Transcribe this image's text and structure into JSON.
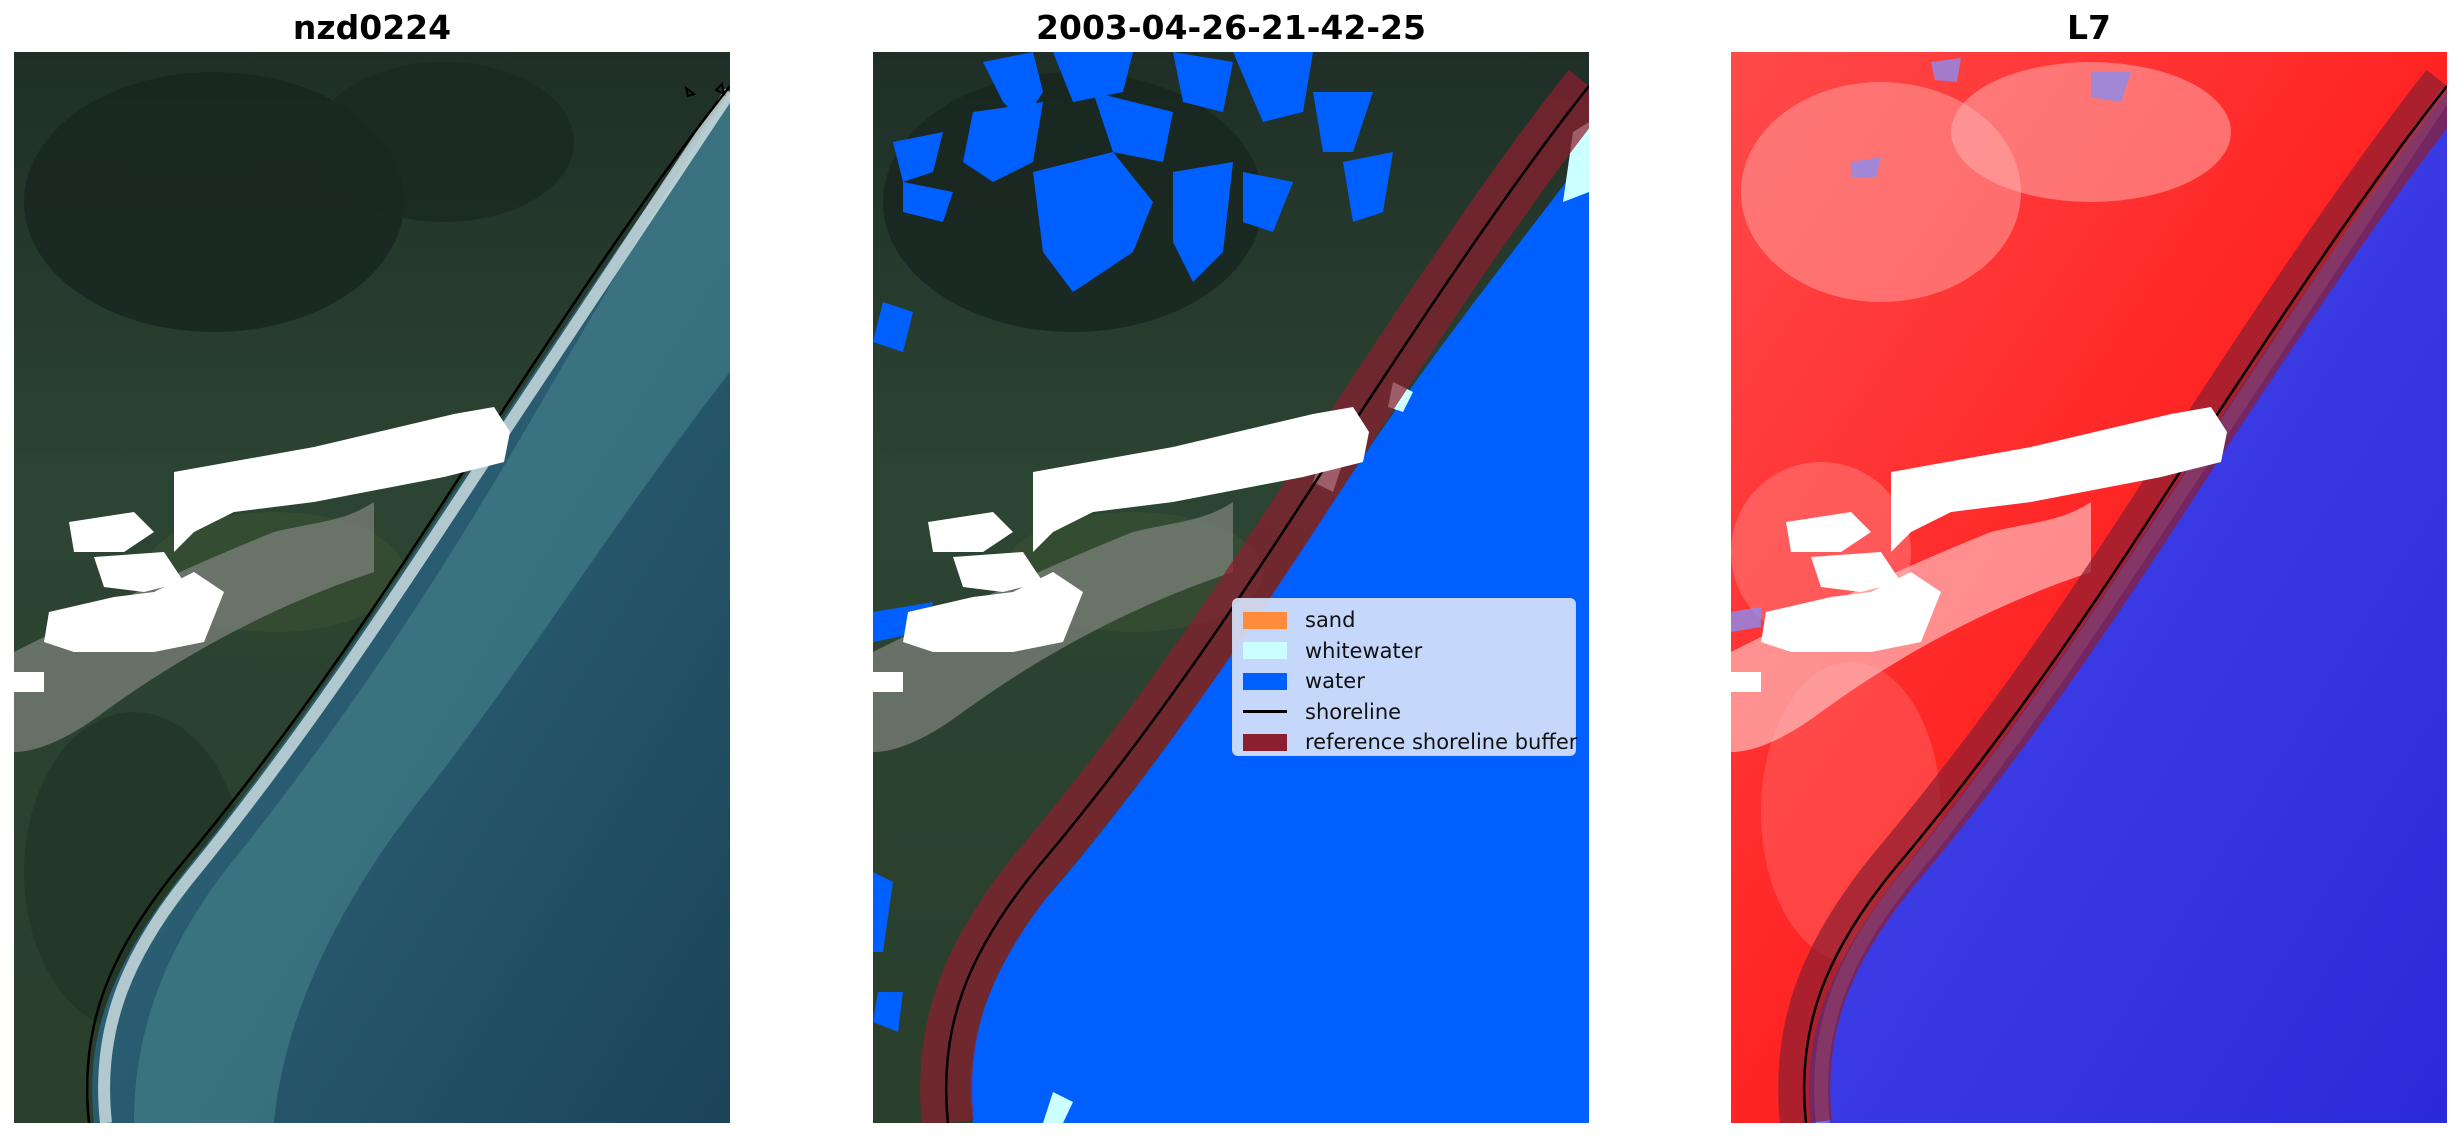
{
  "panels": [
    {
      "title": "nzd0224",
      "kind": "rgb-composite"
    },
    {
      "title": "2003-04-26-21-42-25",
      "kind": "classified"
    },
    {
      "title": "L7",
      "kind": "index-map"
    }
  ],
  "legend": {
    "placement": "center",
    "items": [
      {
        "label": "sand",
        "color": "#ff8c3c",
        "type": "patch",
        "icon": "sand-swatch"
      },
      {
        "label": "whitewater",
        "color": "#ccffff",
        "type": "patch",
        "icon": "whitewater-swatch"
      },
      {
        "label": "water",
        "color": "#0060ff",
        "type": "patch",
        "icon": "water-swatch"
      },
      {
        "label": "shoreline",
        "color": "#000000",
        "type": "line",
        "icon": "shoreline-line"
      },
      {
        "label": "reference shoreline buffer",
        "color": "#8b1f2f",
        "type": "patch",
        "icon": "buffer-swatch"
      }
    ]
  },
  "colors": {
    "land_dark": "#1e3028",
    "land_green": "#324a32",
    "sea": "#1e4a5e",
    "surf": "#e8f2f2",
    "cloud": "#ffffff",
    "water_class": "#0060ff",
    "buffer": "#8b1f2f",
    "index_land": "#ff2020",
    "index_sea": "#2828e6"
  }
}
